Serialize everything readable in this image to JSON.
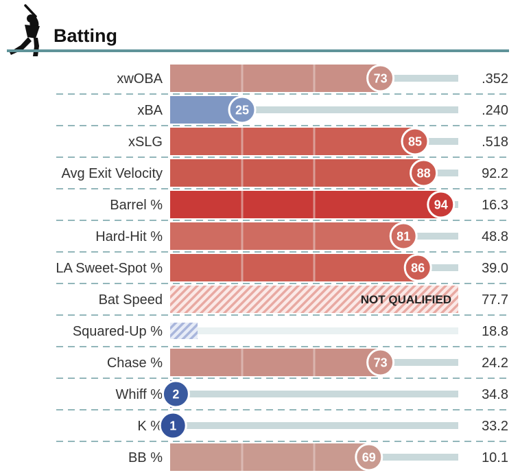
{
  "header": {
    "title": "Batting",
    "icon": "batter-silhouette-icon"
  },
  "not_qualified_label": "NOT QUALIFIED",
  "colors": {
    "header_rule": "#5f9399",
    "dash_separator": "#6f9ea3",
    "track": "#c9d9db",
    "track_light": "#e9f1f2",
    "midline": "#e8d3cf"
  },
  "chart_data": {
    "type": "bar",
    "title": "Batting",
    "xlim": [
      0,
      100
    ],
    "categories": [
      "xwOBA",
      "xBA",
      "xSLG",
      "Avg Exit Velocity",
      "Barrel %",
      "Hard-Hit %",
      "LA Sweet-Spot %",
      "Bat Speed",
      "Squared-Up %",
      "Chase %",
      "Whiff %",
      "K %",
      "BB %"
    ],
    "series": [
      {
        "values": [
          73,
          25,
          85,
          88,
          94,
          81,
          86,
          null,
          null,
          73,
          2,
          1,
          69
        ]
      }
    ],
    "rows": [
      {
        "label": "xwOBA",
        "percentile": 73,
        "value": ".352",
        "color": "#c98f86",
        "qualified": true
      },
      {
        "label": "xBA",
        "percentile": 25,
        "value": ".240",
        "color": "#7f97c3",
        "qualified": true
      },
      {
        "label": "xSLG",
        "percentile": 85,
        "value": ".518",
        "color": "#cd5e53",
        "qualified": true
      },
      {
        "label": "Avg Exit Velocity",
        "percentile": 88,
        "value": "92.2",
        "color": "#cb5a4f",
        "qualified": true
      },
      {
        "label": "Barrel %",
        "percentile": 94,
        "value": "16.3",
        "color": "#c93a37",
        "qualified": true
      },
      {
        "label": "Hard-Hit %",
        "percentile": 81,
        "value": "48.8",
        "color": "#cf6c61",
        "qualified": true
      },
      {
        "label": "LA Sweet-Spot %",
        "percentile": 86,
        "value": "39.0",
        "color": "#cd5e53",
        "qualified": true
      },
      {
        "label": "Bat Speed",
        "percentile": null,
        "value": "77.7",
        "color": "#e8a9a2",
        "qualified": false,
        "note": "NOT QUALIFIED"
      },
      {
        "label": "Squared-Up %",
        "percentile": null,
        "value": "18.8",
        "color": "#a9b6dc",
        "qualified": false,
        "note": ""
      },
      {
        "label": "Chase %",
        "percentile": 73,
        "value": "24.2",
        "color": "#c98f86",
        "qualified": true
      },
      {
        "label": "Whiff %",
        "percentile": 2,
        "value": "34.8",
        "color": "#3a5a9f",
        "qualified": true
      },
      {
        "label": "K %",
        "percentile": 1,
        "value": "33.2",
        "color": "#34529b",
        "qualified": true
      },
      {
        "label": "BB %",
        "percentile": 69,
        "value": "10.1",
        "color": "#c99a90",
        "qualified": true
      }
    ]
  }
}
